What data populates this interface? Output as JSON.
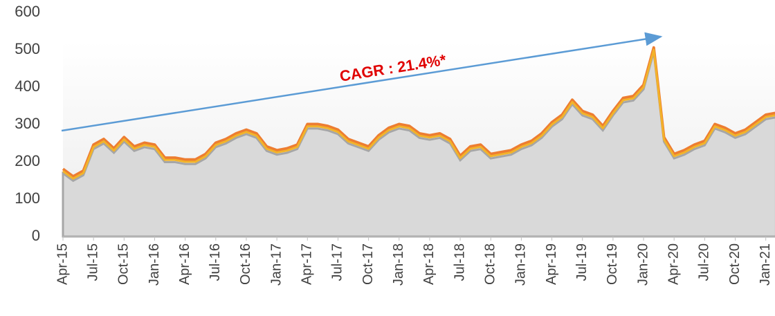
{
  "chart_data": {
    "type": "line",
    "annotation": "CAGR : 21.4%*",
    "categories": [
      "Apr-15",
      null,
      null,
      "Jul-15",
      null,
      null,
      "Oct-15",
      null,
      null,
      "Jan-16",
      null,
      null,
      "Apr-16",
      null,
      null,
      "Jul-16",
      null,
      null,
      "Oct-16",
      null,
      null,
      "Jan-17",
      null,
      null,
      "Apr-17",
      null,
      null,
      "Jul-17",
      null,
      null,
      "Oct-17",
      null,
      null,
      "Jan-18",
      null,
      null,
      "Apr-18",
      null,
      null,
      "Jul-18",
      null,
      null,
      "Oct-18",
      null,
      null,
      "Jan-19",
      null,
      null,
      "Apr-19",
      null,
      null,
      "Jul-19",
      null,
      null,
      "Oct-19",
      null,
      null,
      "Jan-20",
      null,
      null,
      "Apr-20",
      null,
      null,
      "Jul-20",
      null,
      null,
      "Oct-20",
      null,
      null,
      "Jan-21",
      null
    ],
    "series": [
      {
        "color": "#a6a6a6",
        "fill": "#d9d9d9",
        "values": [
          169,
          149,
          164,
          234,
          249,
          224,
          254,
          229,
          239,
          234,
          199,
          199,
          194,
          194,
          209,
          239,
          249,
          264,
          274,
          264,
          229,
          219,
          224,
          234,
          289,
          289,
          284,
          274,
          249,
          239,
          229,
          259,
          279,
          289,
          284,
          264,
          259,
          264,
          249,
          204,
          229,
          234,
          209,
          214,
          219,
          234,
          244,
          264,
          294,
          314,
          354,
          324,
          314,
          284,
          324,
          359,
          364,
          394,
          494,
          254,
          209,
          219,
          234,
          244,
          289,
          279,
          264,
          274,
          294,
          314,
          319
        ]
      },
      {
        "color": "#ed7d31",
        "values": [
          181,
          161,
          176,
          246,
          261,
          236,
          266,
          241,
          251,
          246,
          211,
          211,
          206,
          206,
          221,
          251,
          261,
          276,
          286,
          276,
          241,
          231,
          236,
          246,
          301,
          301,
          296,
          286,
          261,
          251,
          241,
          271,
          291,
          301,
          296,
          276,
          271,
          276,
          261,
          216,
          241,
          246,
          221,
          226,
          231,
          246,
          256,
          276,
          306,
          326,
          366,
          336,
          326,
          296,
          336,
          371,
          376,
          406,
          506,
          266,
          221,
          231,
          246,
          256,
          301,
          291,
          276,
          286,
          306,
          326,
          331
        ]
      },
      {
        "color": "#f2b32a",
        "values": [
          175,
          155,
          170,
          240,
          255,
          230,
          260,
          235,
          245,
          240,
          205,
          205,
          200,
          200,
          215,
          245,
          255,
          270,
          280,
          270,
          235,
          225,
          230,
          240,
          295,
          295,
          290,
          280,
          255,
          245,
          235,
          265,
          285,
          295,
          290,
          270,
          265,
          270,
          255,
          210,
          235,
          240,
          215,
          220,
          225,
          240,
          250,
          270,
          300,
          320,
          360,
          330,
          320,
          290,
          330,
          365,
          370,
          400,
          500,
          260,
          215,
          225,
          240,
          250,
          295,
          285,
          270,
          280,
          300,
          320,
          325
        ]
      }
    ],
    "ylim": [
      0,
      600
    ],
    "yticks": [
      0,
      100,
      200,
      300,
      400,
      500,
      600
    ]
  }
}
